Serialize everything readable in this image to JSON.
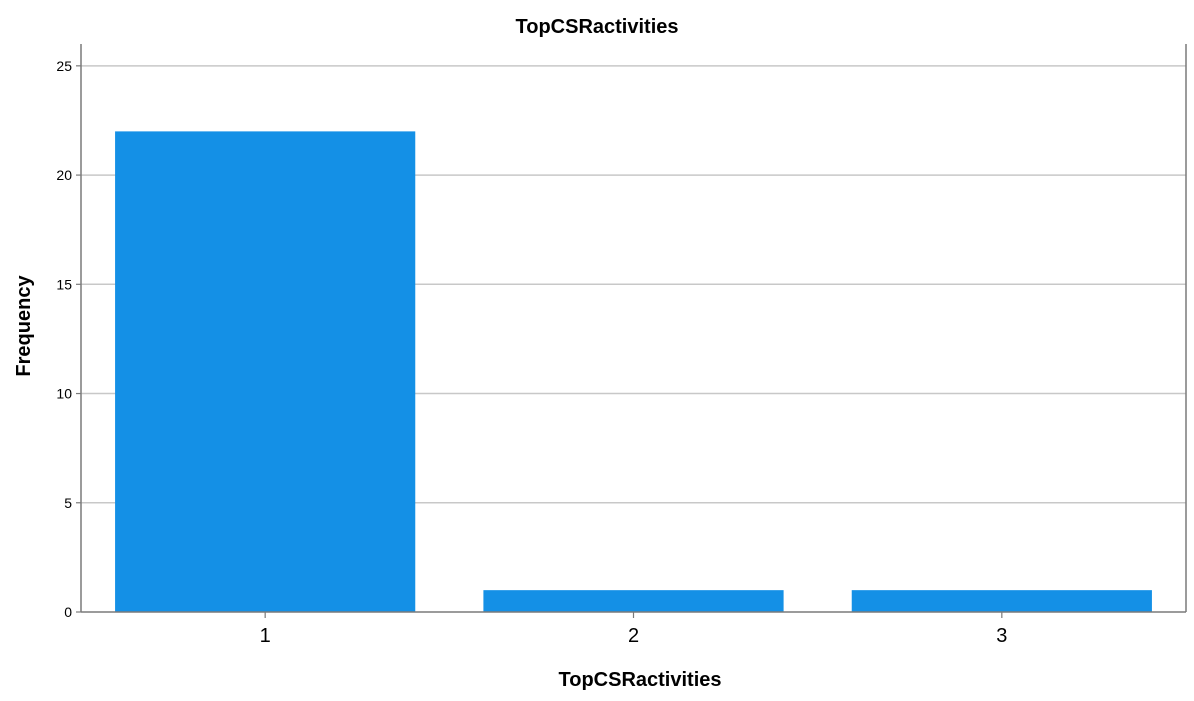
{
  "chart_data": {
    "type": "bar",
    "title": "TopCSRactivities",
    "xlabel": "TopCSRactivities",
    "ylabel": "Frequency",
    "categories": [
      "1",
      "2",
      "3"
    ],
    "values": [
      22,
      1,
      1
    ],
    "ylim": [
      0,
      26
    ],
    "yticks": [
      0,
      5,
      10,
      15,
      20,
      25
    ],
    "grid": true,
    "bar_color": "#1490e6"
  }
}
